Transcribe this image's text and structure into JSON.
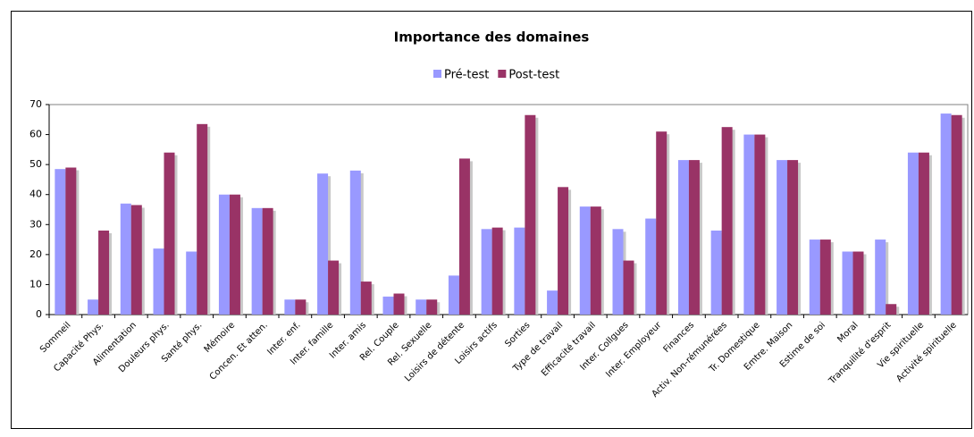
{
  "chart_data": {
    "type": "bar",
    "title": "Importance des domaines",
    "categories": [
      "Sommeil",
      "Capacité Phys.",
      "Alimentation",
      "Douleurs phys.",
      "Santé phys.",
      "Mémoire",
      "Concen. Et atten.",
      "Inter. enf.",
      "Inter. famille",
      "Inter. amis",
      "Rel. Couple",
      "Rel. Sexuelle",
      "Loisirs de détente",
      "Loisirs actifs",
      "Sorties",
      "Type de travail",
      "Efficacité travail",
      "Inter. Collgues",
      "Inter. Employeur",
      "Finances",
      "Activ. Non-rémunérées",
      "Tr. Domestique",
      "Emtre. Maison",
      "Estime de soi",
      "Moral",
      "Tranquilité d'esprit",
      "Vie spirituelle",
      "Activité spirituelle"
    ],
    "series": [
      {
        "name": "Pré-test",
        "color": "#9999ff",
        "values": [
          48.5,
          5,
          37,
          22,
          21,
          40,
          35.5,
          5,
          47,
          48,
          6,
          5,
          13,
          28.5,
          29,
          8,
          36,
          28.5,
          32,
          51.5,
          28,
          60,
          51.5,
          25,
          21,
          25,
          54,
          67
        ]
      },
      {
        "name": "Post-test",
        "color": "#993366",
        "values": [
          49,
          28,
          36.5,
          54,
          63.5,
          40,
          35.5,
          5,
          18,
          11,
          7,
          5,
          52,
          29,
          66.5,
          42.5,
          36,
          18,
          61,
          51.5,
          62.5,
          60,
          51.5,
          25,
          21,
          3.5,
          54,
          66.5
        ]
      }
    ],
    "ylim": [
      0,
      70
    ],
    "yticks": [
      0,
      10,
      20,
      30,
      40,
      50,
      60,
      70
    ],
    "legend": "top"
  }
}
